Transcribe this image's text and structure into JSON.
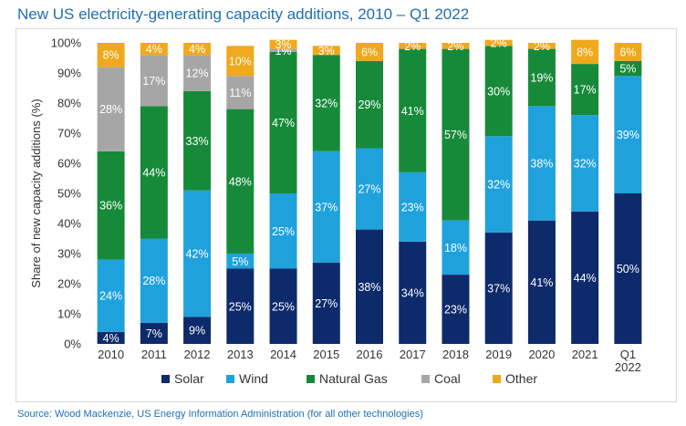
{
  "title": "New US electricity-generating capacity additions, 2010 – Q1 2022",
  "source": "Source: Wood Mackenzie, US Energy Information Administration (for all other technologies)",
  "chart_data": {
    "type": "bar",
    "stacked": true,
    "ylabel": "Share of new capacity additions (%)",
    "ylim": [
      0,
      100
    ],
    "yticks": [
      "0%",
      "10%",
      "20%",
      "30%",
      "40%",
      "50%",
      "60%",
      "70%",
      "80%",
      "90%",
      "100%"
    ],
    "categories": [
      "2010",
      "2011",
      "2012",
      "2013",
      "2014",
      "2015",
      "2016",
      "2017",
      "2018",
      "2019",
      "2020",
      "2021",
      "Q1 2022"
    ],
    "category_lines": [
      [
        "2010"
      ],
      [
        "2011"
      ],
      [
        "2012"
      ],
      [
        "2013"
      ],
      [
        "2014"
      ],
      [
        "2015"
      ],
      [
        "2016"
      ],
      [
        "2017"
      ],
      [
        "2018"
      ],
      [
        "2019"
      ],
      [
        "2020"
      ],
      [
        "2021"
      ],
      [
        "Q1",
        "2022"
      ]
    ],
    "series": [
      {
        "name": "Solar",
        "color": "#0d2a6b",
        "values": [
          4,
          7,
          9,
          25,
          25,
          27,
          38,
          34,
          23,
          37,
          41,
          44,
          50
        ]
      },
      {
        "name": "Wind",
        "color": "#1fa2dc",
        "values": [
          24,
          28,
          42,
          5,
          25,
          37,
          27,
          23,
          18,
          32,
          38,
          32,
          39
        ]
      },
      {
        "name": "Natural Gas",
        "color": "#178a3a",
        "values": [
          36,
          44,
          33,
          48,
          47,
          32,
          29,
          41,
          57,
          30,
          19,
          17,
          5
        ]
      },
      {
        "name": "Coal",
        "color": "#a6a6a6",
        "values": [
          28,
          17,
          12,
          11,
          1,
          0,
          0,
          0,
          0,
          0,
          0,
          0,
          0
        ]
      },
      {
        "name": "Other",
        "color": "#f0a81c",
        "values": [
          8,
          4,
          4,
          10,
          3,
          3,
          6,
          2,
          2,
          2,
          2,
          8,
          6
        ]
      }
    ],
    "data_labels": [
      [
        "4%",
        "24%",
        "36%",
        "28%",
        "8%"
      ],
      [
        "7%",
        "28%",
        "44%",
        "17%",
        "4%"
      ],
      [
        "9%",
        "42%",
        "33%",
        "12%",
        "4%"
      ],
      [
        "25%",
        "5%",
        "48%",
        "11%",
        "10%"
      ],
      [
        "25%",
        "25%",
        "47%",
        "1%",
        "3%"
      ],
      [
        "27%",
        "37%",
        "32%",
        "",
        "3%"
      ],
      [
        "38%",
        "27%",
        "29%",
        "",
        "6%"
      ],
      [
        "34%",
        "23%",
        "41%",
        "",
        "2%"
      ],
      [
        "23%",
        "18%",
        "57%",
        "",
        "2%"
      ],
      [
        "37%",
        "32%",
        "30%",
        "",
        "2%"
      ],
      [
        "41%",
        "38%",
        "19%",
        "",
        "2%"
      ],
      [
        "44%",
        "32%",
        "17%",
        "",
        "8%"
      ],
      [
        "50%",
        "39%",
        "5%",
        "",
        "6%"
      ]
    ],
    "grid": false,
    "legend": "bottom"
  }
}
